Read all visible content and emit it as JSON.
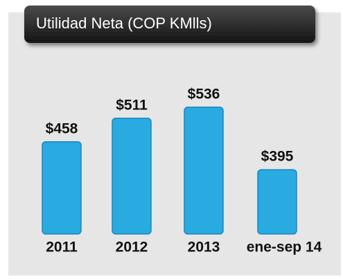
{
  "chart_data": {
    "type": "bar",
    "title": "Utilidad Neta (COP KMlls)",
    "categories": [
      "2011",
      "2012",
      "2013",
      "ene-sep 14"
    ],
    "values": [
      458,
      511,
      536,
      395
    ],
    "value_labels": [
      "$458",
      "$511",
      "$536",
      "$395"
    ],
    "color": "#29abe2",
    "ylim": [
      250,
      570
    ]
  }
}
